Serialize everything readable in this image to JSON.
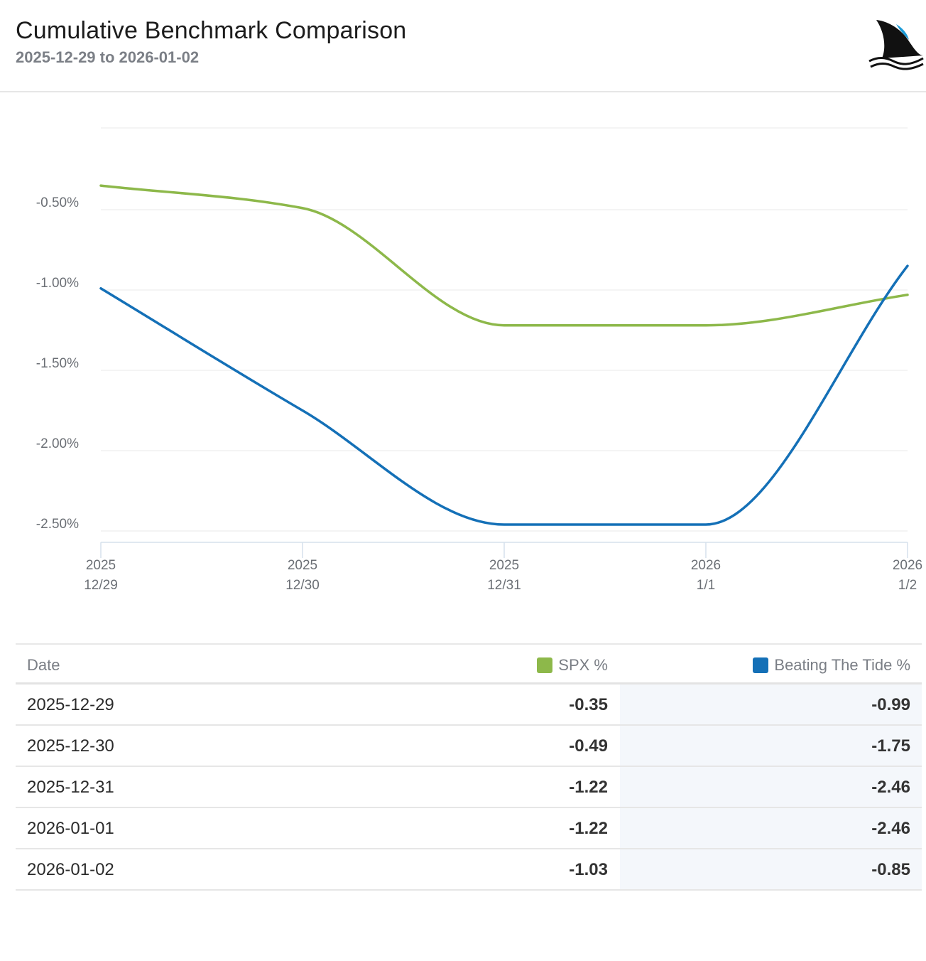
{
  "header": {
    "title": "Cumulative Benchmark Comparison",
    "subtitle": "2025-12-29 to 2026-01-02",
    "logo_icon": "shark-fin-icon"
  },
  "colors": {
    "spx": "#8db84a",
    "beating_the_tide": "#1470b7",
    "grid": "#e8e8e8",
    "axis": "#d6e1ec"
  },
  "chart_data": {
    "type": "line",
    "x": [
      "2025-12-29",
      "2025-12-30",
      "2025-12-31",
      "2026-01-01",
      "2026-01-02"
    ],
    "x_tick_labels": [
      {
        "year": "2025",
        "day": "12/29"
      },
      {
        "year": "2025",
        "day": "12/30"
      },
      {
        "year": "2025",
        "day": "12/31"
      },
      {
        "year": "2026",
        "day": "1/1"
      },
      {
        "year": "2026",
        "day": "1/2"
      }
    ],
    "y_tick_values": [
      -0.5,
      -1.0,
      -1.5,
      -2.0,
      -2.5
    ],
    "y_tick_labels": [
      "-0.50%",
      "-1.00%",
      "-1.50%",
      "-2.00%",
      "-2.50%"
    ],
    "ylim": [
      -2.5,
      0.0
    ],
    "grid": true,
    "series": [
      {
        "name": "SPX %",
        "color": "#8db84a",
        "values": [
          -0.35,
          -0.49,
          -1.22,
          -1.22,
          -1.03
        ]
      },
      {
        "name": "Beating The Tide %",
        "color": "#1470b7",
        "values": [
          -0.99,
          -1.75,
          -2.46,
          -2.46,
          -0.85
        ]
      }
    ]
  },
  "table": {
    "headers": {
      "date": "Date",
      "spx": "SPX %",
      "btt": "Beating The Tide %"
    },
    "rows": [
      {
        "date": "2025-12-29",
        "spx": "-0.35",
        "btt": "-0.99"
      },
      {
        "date": "2025-12-30",
        "spx": "-0.49",
        "btt": "-1.75"
      },
      {
        "date": "2025-12-31",
        "spx": "-1.22",
        "btt": "-2.46"
      },
      {
        "date": "2026-01-01",
        "spx": "-1.22",
        "btt": "-2.46"
      },
      {
        "date": "2026-01-02",
        "spx": "-1.03",
        "btt": "-0.85"
      }
    ]
  }
}
